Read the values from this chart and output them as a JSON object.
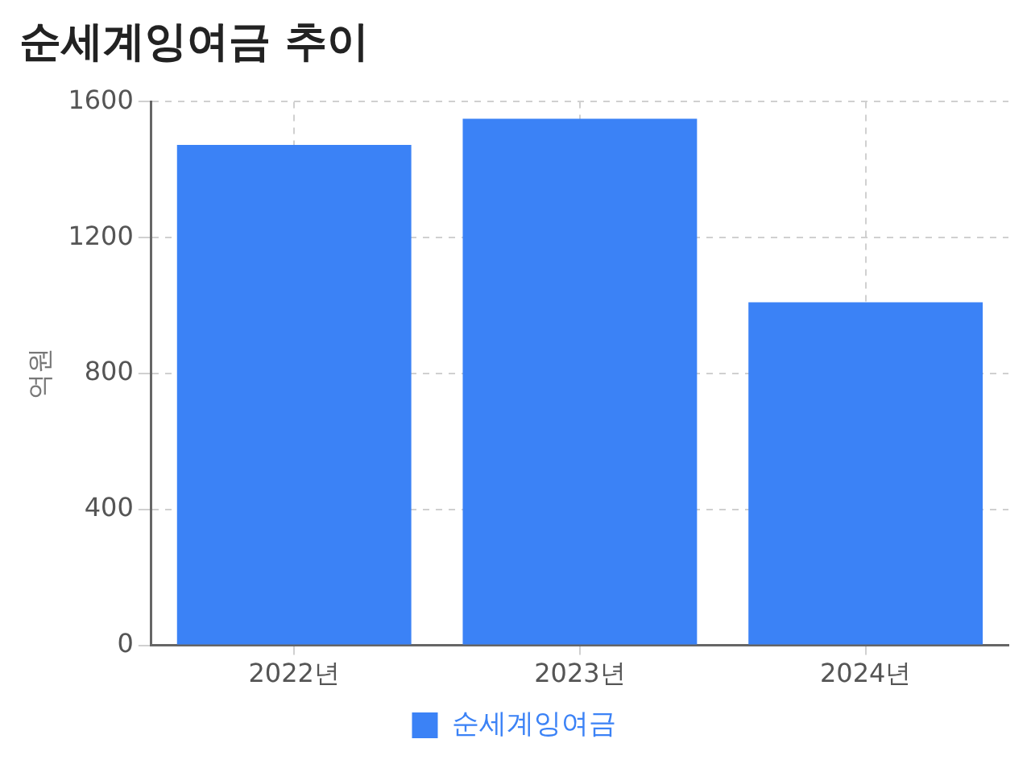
{
  "chart_data": {
    "type": "bar",
    "title": "순세계잉여금 추이",
    "ylabel": "억원",
    "categories": [
      "2022년",
      "2023년",
      "2024년"
    ],
    "series": [
      {
        "name": "순세계잉여금",
        "color": "#3b82f6",
        "values": [
          1473,
          1550,
          1010
        ]
      }
    ],
    "ylim": [
      0,
      1600
    ],
    "yticks": [
      0,
      400,
      800,
      1200,
      1600
    ],
    "grid": true,
    "legend": "bottom"
  }
}
